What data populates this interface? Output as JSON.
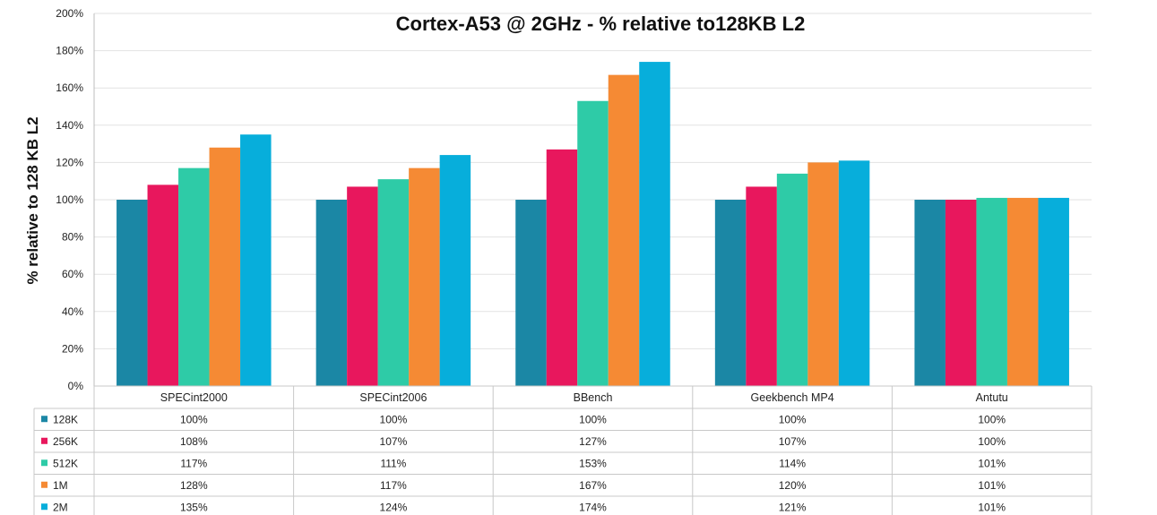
{
  "chart_data": {
    "type": "bar",
    "title": "Cortex-A53 @ 2GHz - % relative to128KB L2",
    "ylabel": "% relative to 128 KB L2",
    "xlabel": "",
    "ylim": [
      0,
      200
    ],
    "y_ticks": [
      "0%",
      "20%",
      "40%",
      "60%",
      "80%",
      "100%",
      "120%",
      "140%",
      "160%",
      "180%",
      "200%"
    ],
    "grid": true,
    "legend": "data-table-below",
    "categories": [
      "SPECint2000",
      "SPECint2006",
      "BBench",
      "Geekbench MP4",
      "Antutu"
    ],
    "series": [
      {
        "name": "128K",
        "color": "#1b87a5",
        "values": [
          100,
          100,
          100,
          100,
          100
        ],
        "labels": [
          "100%",
          "100%",
          "100%",
          "100%",
          "100%"
        ]
      },
      {
        "name": "256K",
        "color": "#e8175d",
        "values": [
          108,
          107,
          127,
          107,
          100
        ],
        "labels": [
          "108%",
          "107%",
          "127%",
          "107%",
          "100%"
        ]
      },
      {
        "name": "512K",
        "color": "#2ecba7",
        "values": [
          117,
          111,
          153,
          114,
          101
        ],
        "labels": [
          "117%",
          "111%",
          "153%",
          "114%",
          "101%"
        ]
      },
      {
        "name": "1M",
        "color": "#f58a34",
        "values": [
          128,
          117,
          167,
          120,
          101
        ],
        "labels": [
          "128%",
          "117%",
          "167%",
          "120%",
          "101%"
        ]
      },
      {
        "name": "2M",
        "color": "#07aedb",
        "values": [
          135,
          124,
          174,
          121,
          101
        ],
        "labels": [
          "135%",
          "124%",
          "174%",
          "121%",
          "101%"
        ]
      }
    ]
  }
}
